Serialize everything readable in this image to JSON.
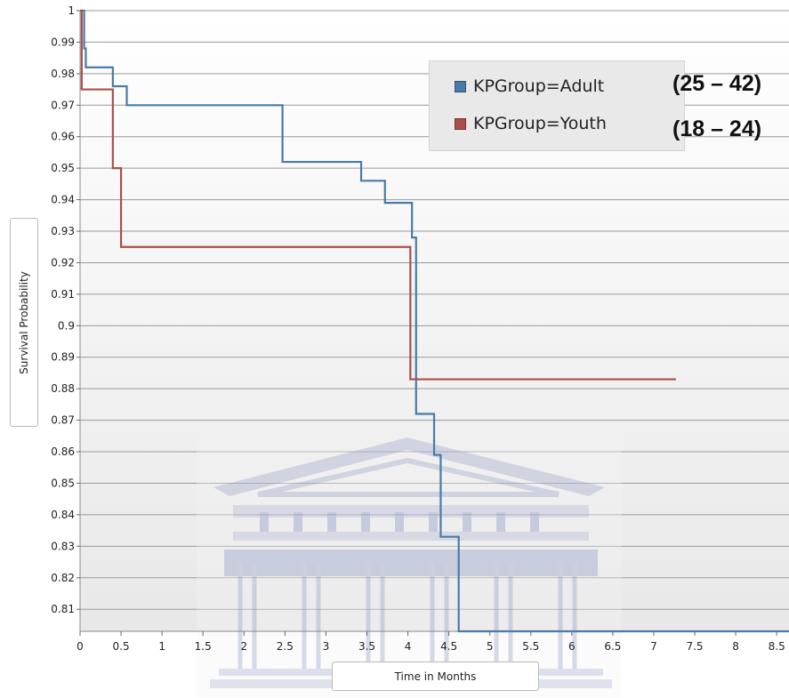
{
  "chart_data": {
    "type": "line",
    "step": true,
    "title": "",
    "xlabel": "Time in Months",
    "ylabel": "Survival Probability",
    "xlim": [
      0,
      8.65
    ],
    "ylim": [
      0.803,
      1.0
    ],
    "grid": true,
    "x_ticks": [
      0,
      0.5,
      1,
      1.5,
      2,
      2.5,
      3,
      3.5,
      4,
      4.5,
      5,
      5.5,
      6,
      6.5,
      7,
      7.5,
      8,
      8.5
    ],
    "x_tick_labels": [
      "0",
      "0.5",
      "1",
      "1.5",
      "2",
      "2.5",
      "3",
      "3.5",
      "4",
      "4.5",
      "5",
      "5.5",
      "6",
      "6.5",
      "7",
      "7.5",
      "8",
      "8.5"
    ],
    "y_ticks": [
      0.81,
      0.82,
      0.83,
      0.84,
      0.85,
      0.86,
      0.87,
      0.88,
      0.89,
      0.9,
      0.91,
      0.92,
      0.93,
      0.94,
      0.95,
      0.96,
      0.97,
      0.98,
      0.99,
      1
    ],
    "y_tick_labels": [
      "0.81",
      "0.82",
      "0.83",
      "0.84",
      "0.85",
      "0.86",
      "0.87",
      "0.88",
      "0.89",
      "0.9",
      "0.91",
      "0.92",
      "0.93",
      "0.94",
      "0.95",
      "0.96",
      "0.97",
      "0.98",
      "0.99",
      "1"
    ],
    "legend_position": "top-right",
    "series": [
      {
        "name": "KPGroup=Adult",
        "color": "#4a7aa8",
        "points": [
          [
            0,
            1.0
          ],
          [
            0.05,
            0.988
          ],
          [
            0.07,
            0.982
          ],
          [
            0.4,
            0.976
          ],
          [
            0.57,
            0.97
          ],
          [
            2.47,
            0.952
          ],
          [
            3.43,
            0.946
          ],
          [
            3.72,
            0.939
          ],
          [
            4.05,
            0.928
          ],
          [
            4.1,
            0.872
          ],
          [
            4.32,
            0.859
          ],
          [
            4.4,
            0.833
          ],
          [
            4.62,
            0.803
          ],
          [
            8.65,
            0.803
          ]
        ]
      },
      {
        "name": "KPGroup=Youth",
        "color": "#a9504c",
        "points": [
          [
            0,
            1.0
          ],
          [
            0.02,
            0.975
          ],
          [
            0.4,
            0.95
          ],
          [
            0.5,
            0.925
          ],
          [
            4.03,
            0.883
          ],
          [
            7.27,
            0.883
          ]
        ]
      }
    ],
    "annotations": [
      "(25 – 42)",
      "(18 – 24)"
    ]
  },
  "legend": {
    "items": [
      {
        "label": "KPGroup=Adult",
        "color": "#4a7aa8"
      },
      {
        "label": "KPGroup=Youth",
        "color": "#a9504c"
      }
    ]
  },
  "age_ranges": {
    "adult": "(25 – 42)",
    "youth": "(18 – 24)"
  },
  "watermark": {
    "icon": "university-building-watermark-icon"
  }
}
